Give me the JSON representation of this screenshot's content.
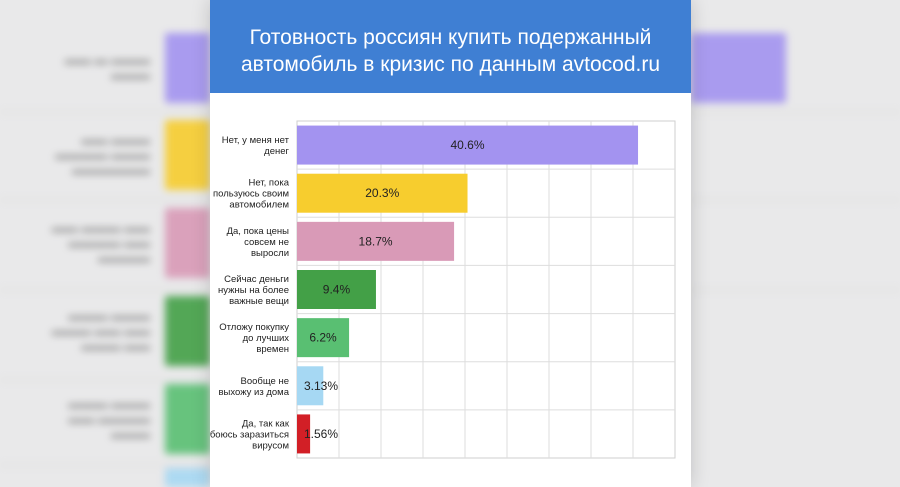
{
  "header": {
    "title_line1": "Готовность россиян купить подержанный",
    "title_line2": "автомобиль в кризис по данным avtocod.ru"
  },
  "colors": {
    "header_bg": "#3f7fd3",
    "grid": "#dddddd"
  },
  "chart_data": {
    "type": "bar",
    "orientation": "horizontal",
    "title": "Готовность россиян купить подержанный автомобиль в кризис по данным avtocod.ru",
    "categories": [
      [
        "Нет, у меня нет",
        "денег"
      ],
      [
        "Нет, пока",
        "пользуюсь своим",
        "автомобилем"
      ],
      [
        "Да, пока цены",
        "совсем не",
        "выросли"
      ],
      [
        "Сейчас деньги",
        "нужны на более",
        "важные вещи"
      ],
      [
        "Отложу покупку",
        "до лучших",
        "времен"
      ],
      [
        "Вообще не",
        "выхожу из дома"
      ],
      [
        "Да, так как",
        "боюсь заразиться",
        "вирусом"
      ]
    ],
    "values": [
      40.6,
      20.3,
      18.7,
      9.4,
      6.2,
      3.13,
      1.56
    ],
    "value_labels": [
      "40.6%",
      "20.3%",
      "18.7%",
      "9.4%",
      "6.2%",
      "3.13%",
      "1.56%"
    ],
    "bar_colors": [
      "#a393f0",
      "#f7cd2e",
      "#d99ab7",
      "#43a047",
      "#59bf72",
      "#a6d8f3",
      "#d21f26"
    ],
    "xlim": [
      0,
      45
    ],
    "grid": true
  }
}
